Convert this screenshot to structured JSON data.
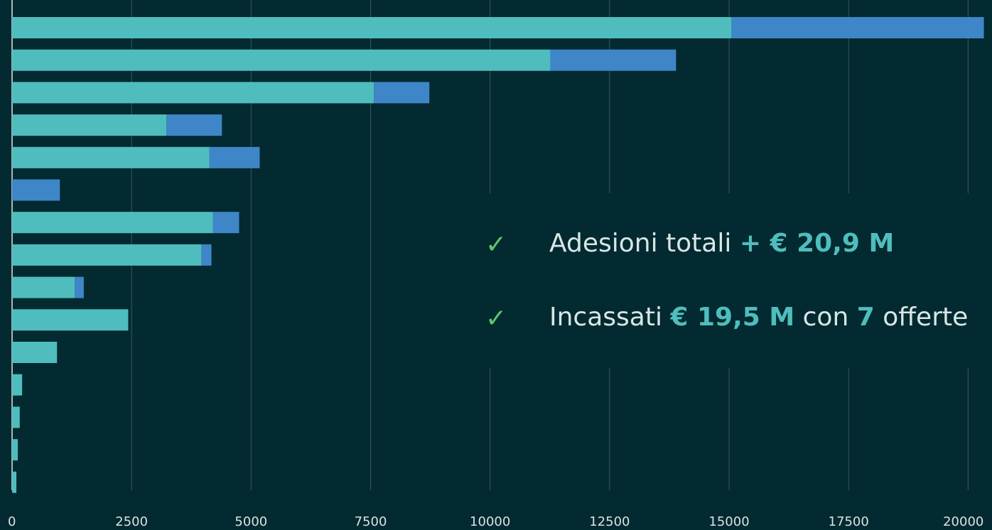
{
  "chart_data": {
    "type": "stacked_barh",
    "categories": [
      null,
      null,
      null,
      null,
      null,
      null,
      null,
      null,
      null,
      null,
      null,
      null,
      null,
      null,
      null
    ],
    "series": [
      {
        "color": "#4fbdbd",
        "values": [
          15050,
          11260,
          7570,
          3230,
          4130,
          0,
          4200,
          3960,
          1310,
          2430,
          940,
          210,
          160,
          120,
          90
        ]
      },
      {
        "color": "#3f86c8",
        "values": [
          5280,
          2630,
          1160,
          1160,
          1050,
          1000,
          550,
          210,
          190,
          0,
          0,
          0,
          0,
          0,
          0
        ]
      }
    ],
    "xlim": [
      0,
      20500
    ],
    "xticks": [
      0,
      2500,
      5000,
      7500,
      10000,
      12500,
      15000,
      17500,
      20000
    ],
    "grid": true,
    "annotations": [
      {
        "mark": "✓",
        "parts": [
          {
            "text": "Adesioni totali "
          },
          {
            "text": "+ € 20,9 M",
            "bold": true
          }
        ]
      },
      {
        "mark": "✓",
        "parts": [
          {
            "text": "Incassati "
          },
          {
            "text": "€ 19,5 M",
            "bold": true
          },
          {
            "text": " con "
          },
          {
            "text": "7",
            "bold": true
          },
          {
            "text": " offerte"
          }
        ]
      }
    ]
  }
}
